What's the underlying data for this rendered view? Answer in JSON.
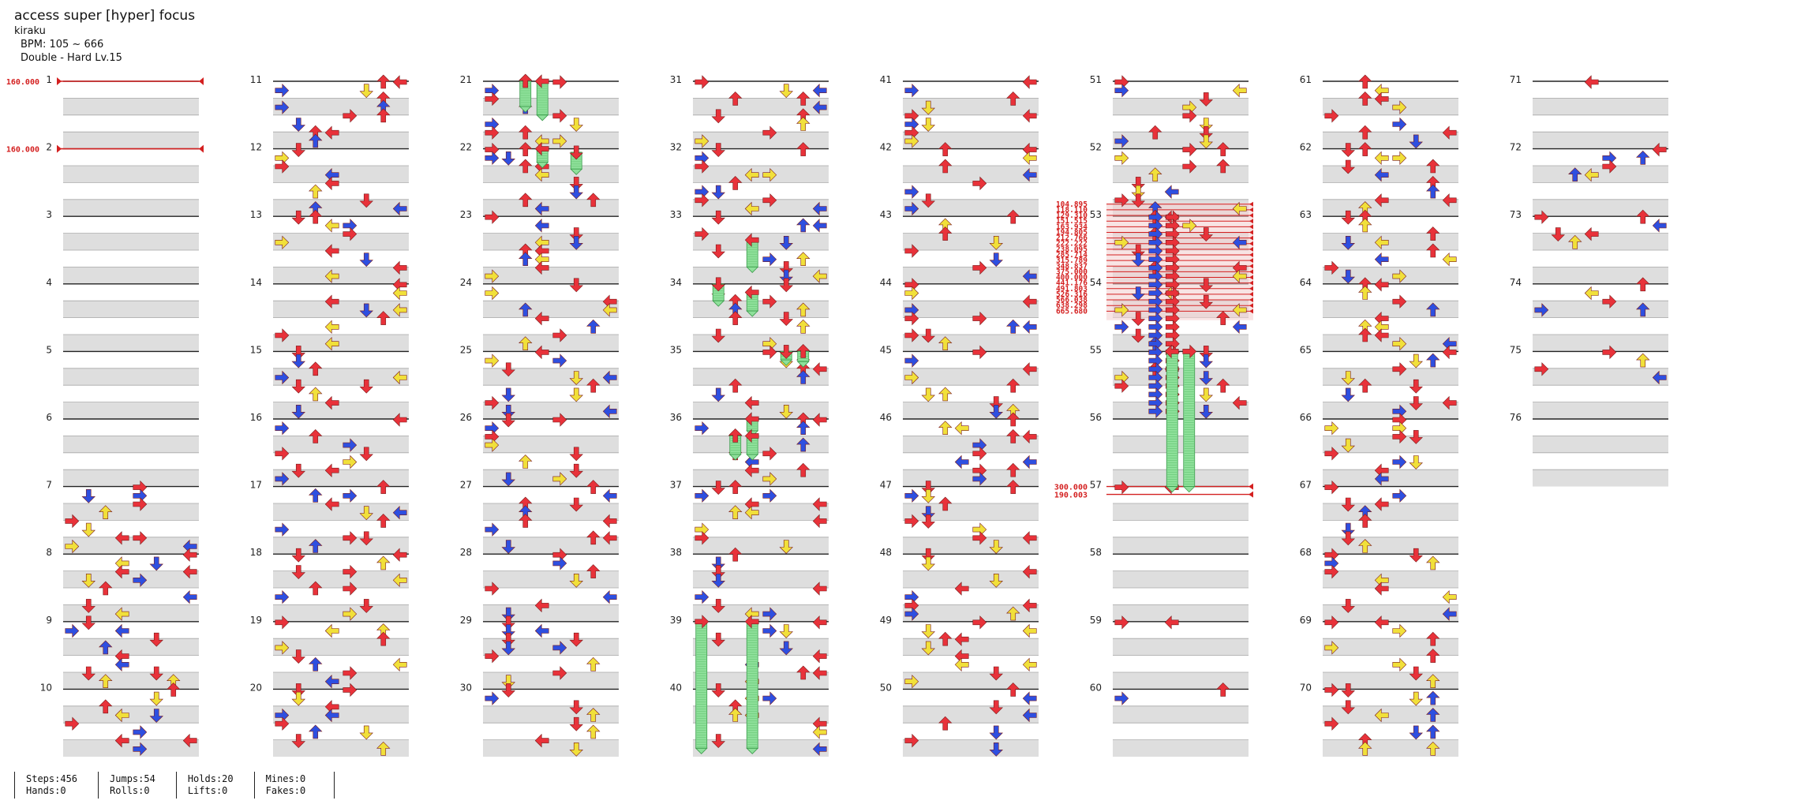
{
  "song": {
    "title": "access super [hyper] focus",
    "artist": "kiraku",
    "bpm_label": "BPM: 105 ~ 666",
    "difficulty_label": "Double - Hard Lv.15"
  },
  "stats": {
    "steps": "Steps:456",
    "hands": "Hands:0",
    "jumps": "Jumps:54",
    "rolls": "Rolls:0",
    "holds": "Holds:20",
    "lifts": "Lifts:0",
    "mines": "Mines:0",
    "fakes": "Fakes:0"
  },
  "chart_data": {
    "type": "step-chart",
    "layout": "8 columns of measures",
    "measure_labels": [
      "1",
      "2",
      "3",
      "4",
      "5",
      "6",
      "7",
      "8",
      "9",
      "10",
      "11",
      "12",
      "13",
      "14",
      "15",
      "16",
      "17",
      "18",
      "19",
      "20",
      "21",
      "22",
      "23",
      "24",
      "25",
      "26",
      "27",
      "28",
      "29",
      "30",
      "31",
      "32",
      "33",
      "34",
      "35",
      "36",
      "37",
      "38",
      "39",
      "40",
      "41",
      "42",
      "43",
      "44",
      "45",
      "46",
      "47",
      "48",
      "49",
      "50",
      "51",
      "52",
      "53",
      "54",
      "55",
      "56",
      "57",
      "58",
      "59",
      "60",
      "61",
      "62",
      "63",
      "64",
      "65",
      "66",
      "67",
      "68",
      "69",
      "70",
      "71",
      "72",
      "73",
      "74",
      "75",
      "76"
    ],
    "bpm_changes": [
      {
        "measure": 1,
        "label": "160.000"
      },
      {
        "measure": 2,
        "label": "160.000"
      }
    ],
    "bpm_changes_measure_53": [
      "104.895",
      "118.110",
      "129.310",
      "151.515",
      "163.934",
      "194.805",
      "212.766",
      "222.222",
      "238.095",
      "285.714",
      "315.789",
      "348.837",
      "375.000",
      "400.000",
      "441.176",
      "491.803",
      "526.316",
      "566.038",
      "638.298",
      "665.680"
    ],
    "bpm_changes_measure_57": [
      "300.000",
      "190.003"
    ],
    "colors": {
      "quarter": "#e8323a",
      "eighth": "#2e4fe0",
      "sixteenth": "#f1e03a",
      "hold": "#8ee09a",
      "bpm_marker": "#d42020"
    },
    "sample_notes": {
      "1-10": [
        [
          7,
          0,
          [
            6,
            7
          ]
        ],
        [
          7,
          1,
          [
            5
          ]
        ],
        [
          7,
          2,
          [
            3
          ]
        ],
        [
          7,
          3,
          [
            0
          ]
        ],
        [
          8,
          0,
          [
            0,
            3
          ]
        ],
        [
          8,
          1,
          [
            0
          ]
        ],
        [
          8,
          2,
          [
            3
          ]
        ],
        [
          8,
          3,
          [
            5
          ]
        ],
        [
          9,
          0,
          [
            5,
            6
          ]
        ],
        [
          9,
          1,
          [
            7
          ]
        ],
        [
          9,
          2,
          [
            8
          ]
        ],
        [
          9,
          3,
          [
            8
          ]
        ],
        [
          10,
          0,
          [
            7,
            8
          ]
        ],
        [
          10,
          1,
          [
            8
          ]
        ],
        [
          10,
          2,
          [
            7
          ]
        ],
        [
          10,
          3,
          [
            6
          ]
        ]
      ],
      "11-20": [
        [
          11,
          0,
          [
            5,
            6
          ]
        ],
        [
          11,
          1,
          [
            6
          ]
        ],
        [
          11,
          2,
          [
            2
          ]
        ],
        [
          11,
          3,
          [
            2,
            3
          ]
        ],
        [
          12,
          0,
          [
            0,
            1
          ]
        ],
        [
          12,
          1,
          [
            1,
            2
          ]
        ],
        [
          12,
          2,
          [
            0,
            5
          ]
        ],
        [
          12,
          3,
          [
            5
          ]
        ],
        [
          13,
          0,
          [
            2,
            3
          ]
        ],
        [
          13,
          1,
          [
            0,
            5
          ]
        ],
        [
          13,
          2,
          [
            3
          ]
        ],
        [
          13,
          3,
          [
            5
          ]
        ],
        [
          14,
          0,
          [
            8
          ]
        ],
        [
          14,
          1,
          [
            8,
            9
          ]
        ],
        [
          14,
          2,
          [
            9
          ]
        ],
        [
          14,
          3,
          [
            8,
            10
          ]
        ]
      ],
      "71-76": [
        [
          71,
          0,
          [
            5,
            6
          ]
        ],
        [
          73,
          0,
          [
            5,
            6
          ]
        ],
        [
          73,
          1,
          [
            2,
            3
          ]
        ],
        [
          73,
          2,
          [
            2,
            3,
            4
          ]
        ],
        [
          73,
          3,
          [
            2,
            4,
            6
          ]
        ],
        [
          74,
          0,
          [
            2,
            5
          ]
        ],
        [
          74,
          1,
          [
            5
          ]
        ],
        [
          74,
          2,
          [
            4
          ]
        ],
        [
          74,
          3,
          [
            5,
            6
          ]
        ],
        [
          75,
          0,
          [
            5,
            6
          ]
        ],
        [
          75,
          1,
          [
            6,
            7
          ]
        ],
        [
          75,
          2,
          [
            9
          ]
        ]
      ]
    }
  }
}
